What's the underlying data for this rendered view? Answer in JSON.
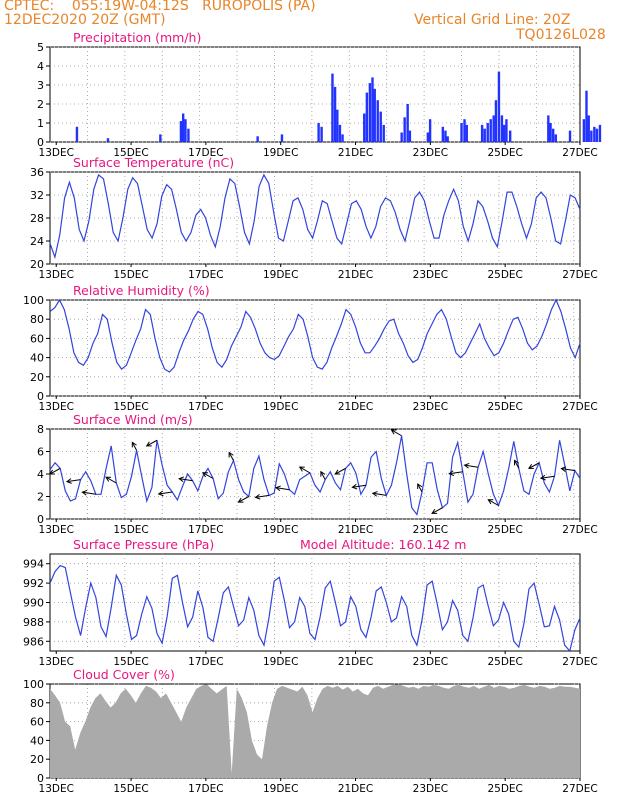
{
  "header": {
    "line1_left": "CPTEC:    055:19W-04:12S   RUROPOLIS (PA)",
    "line2_left": "12DEC2020 20Z (GMT)",
    "line2_right": "Vertical Grid Line: 20Z",
    "line3_right": "TQ0126L028",
    "text_color": "#e8852a"
  },
  "colors": {
    "title": "#e8167f",
    "series": "#3344dd",
    "bars": "#2233ff",
    "cloud": "#aaaaaa",
    "grid": "#999999"
  },
  "x_ticks": [
    "13DEC",
    "15DEC",
    "17DEC",
    "19DEC",
    "21DEC",
    "23DEC",
    "25DEC",
    "27DEC"
  ],
  "chart_data": [
    {
      "type": "bar",
      "title": "Precipitation (mm/h)",
      "xlim": [
        "12DEC2020 20Z",
        "27DEC2020 00Z"
      ],
      "ylim": [
        0,
        5
      ],
      "yticks": [
        0,
        1,
        2,
        3,
        4,
        5
      ],
      "x_day": [
        0.72,
        1.55,
        2.95,
        3.5,
        3.56,
        3.62,
        3.7,
        5.55,
        6.2,
        7.18,
        7.26,
        7.55,
        7.62,
        7.68,
        7.75,
        7.82,
        8.4,
        8.47,
        8.55,
        8.62,
        8.68,
        8.76,
        8.84,
        8.92,
        9.4,
        9.48,
        9.56,
        9.62,
        10.1,
        10.16,
        10.5,
        10.57,
        10.63,
        11.0,
        11.08,
        11.14,
        11.55,
        11.62,
        11.7,
        11.78,
        11.86,
        11.92,
        12.0,
        12.08,
        12.14,
        12.2,
        12.3,
        13.32,
        13.38,
        13.45,
        13.52,
        13.9,
        14.27,
        14.34,
        14.4,
        14.47,
        14.55,
        14.62,
        14.7
      ],
      "values": [
        0.8,
        0.2,
        0.4,
        1.1,
        1.5,
        1.2,
        0.7,
        0.3,
        0.4,
        1.0,
        0.8,
        3.6,
        2.9,
        1.7,
        0.9,
        0.4,
        1.5,
        2.6,
        3.1,
        3.4,
        2.8,
        2.2,
        1.6,
        0.9,
        0.5,
        1.3,
        2.0,
        0.6,
        0.5,
        1.2,
        0.8,
        0.6,
        0.3,
        1.0,
        1.2,
        0.9,
        0.9,
        0.7,
        1.0,
        1.2,
        1.4,
        2.2,
        3.7,
        1.4,
        0.9,
        1.2,
        0.6,
        1.4,
        1.0,
        0.7,
        0.4,
        0.6,
        1.2,
        2.7,
        1.4,
        0.6,
        0.8,
        0.7,
        0.9
      ]
    },
    {
      "type": "line",
      "title": "Surface Temperature (nC)",
      "ylim": [
        20,
        36
      ],
      "yticks": [
        20,
        24,
        28,
        32,
        36
      ],
      "y": [
        23.6,
        21.2,
        25.0,
        31.5,
        34.2,
        31.5,
        26.0,
        24.0,
        27.5,
        33.0,
        35.5,
        34.8,
        30.5,
        25.5,
        24.0,
        28.0,
        33.0,
        35.0,
        34.0,
        30.0,
        26.0,
        24.5,
        27.0,
        31.8,
        33.8,
        33.0,
        29.5,
        25.5,
        24.0,
        25.5,
        28.5,
        29.5,
        28.0,
        25.0,
        23.0,
        26.5,
        31.5,
        34.8,
        34.0,
        30.0,
        25.5,
        23.5,
        27.5,
        33.5,
        35.5,
        34.0,
        29.0,
        24.5,
        24.0,
        27.5,
        31.0,
        31.5,
        29.5,
        26.0,
        24.5,
        27.5,
        31.0,
        30.5,
        27.5,
        24.5,
        23.5,
        27.0,
        30.5,
        31.0,
        29.5,
        26.5,
        24.5,
        26.5,
        30.0,
        31.5,
        31.0,
        29.0,
        26.0,
        24.0,
        27.5,
        31.5,
        32.5,
        31.0,
        27.5,
        24.5,
        24.5,
        28.5,
        31.0,
        33.0,
        31.0,
        26.5,
        24.0,
        27.0,
        31.0,
        30.0,
        27.5,
        24.5,
        23.0,
        27.5,
        32.5,
        32.5,
        30.0,
        27.0,
        24.5,
        27.0,
        31.5,
        32.5,
        31.5,
        28.0,
        24.0,
        23.5,
        27.5,
        32.0,
        31.5,
        29.5
      ]
    },
    {
      "type": "line",
      "title": "Relative Humidity (%)",
      "ylim": [
        0,
        100
      ],
      "yticks": [
        0,
        20,
        40,
        60,
        80,
        100
      ],
      "y": [
        88,
        92,
        100,
        90,
        70,
        45,
        35,
        32,
        40,
        55,
        65,
        85,
        80,
        55,
        35,
        28,
        32,
        45,
        58,
        70,
        90,
        85,
        60,
        40,
        28,
        25,
        30,
        45,
        58,
        68,
        80,
        88,
        85,
        70,
        50,
        35,
        30,
        38,
        52,
        62,
        72,
        88,
        82,
        70,
        55,
        45,
        40,
        38,
        42,
        52,
        62,
        70,
        85,
        80,
        62,
        40,
        30,
        28,
        35,
        50,
        62,
        75,
        90,
        85,
        72,
        55,
        45,
        45,
        52,
        60,
        70,
        78,
        80,
        65,
        55,
        42,
        35,
        38,
        50,
        65,
        75,
        85,
        90,
        80,
        62,
        45,
        40,
        45,
        55,
        65,
        75,
        60,
        50,
        42,
        45,
        55,
        68,
        80,
        82,
        70,
        55,
        48,
        52,
        62,
        75,
        90,
        100,
        88,
        70,
        50,
        40,
        55
      ]
    },
    {
      "type": "line",
      "title": "Surface Wind (m/s)",
      "ylim": [
        0,
        8
      ],
      "yticks": [
        0,
        2,
        4,
        6,
        8
      ],
      "y": [
        4.4,
        5.0,
        4.5,
        2.5,
        1.6,
        1.8,
        3.5,
        4.2,
        3.4,
        2.2,
        2.2,
        4.5,
        6.5,
        3.2,
        1.9,
        2.2,
        3.8,
        6.1,
        3.8,
        1.6,
        2.8,
        7.0,
        4.8,
        3.0,
        2.4,
        1.7,
        2.9,
        4.0,
        3.4,
        2.5,
        3.8,
        4.5,
        3.6,
        1.8,
        2.3,
        4.2,
        5.2,
        3.5,
        2.4,
        2.0,
        4.5,
        5.6,
        3.5,
        2.1,
        2.3,
        4.9,
        4.0,
        2.6,
        2.2,
        3.5,
        3.8,
        4.1,
        3.0,
        2.4,
        3.5,
        4.2,
        3.2,
        2.6,
        4.5,
        5.0,
        4.1,
        2.2,
        3.0,
        5.5,
        6.0,
        3.6,
        2.1,
        3.0,
        5.0,
        7.4,
        4.0,
        1.0,
        0.4,
        2.4,
        5.0,
        5.0,
        2.6,
        1.0,
        1.4,
        5.5,
        6.8,
        4.2,
        1.5,
        2.2,
        4.6,
        6.0,
        4.0,
        2.2,
        1.2,
        2.5,
        4.5,
        6.9,
        4.5,
        2.5,
        2.2,
        4.0,
        5.0,
        3.2,
        2.4,
        3.8,
        7.0,
        4.8,
        2.5,
        4.3,
        3.6
      ],
      "wind_direction_arrows": true
    },
    {
      "type": "line",
      "title": "Surface Pressure (hPa)",
      "annotation": "Model Altitude: 160.142 m",
      "ylim": [
        985,
        995
      ],
      "yticks": [
        986,
        988,
        990,
        992,
        994
      ],
      "y": [
        992.0,
        993.2,
        993.8,
        993.6,
        991.0,
        988.5,
        986.6,
        989.5,
        992.0,
        990.5,
        987.5,
        986.5,
        989.5,
        992.8,
        991.8,
        988.8,
        986.2,
        986.6,
        988.8,
        990.6,
        989.4,
        986.8,
        985.8,
        988.6,
        992.5,
        992.8,
        990.0,
        987.5,
        988.5,
        991.2,
        989.5,
        986.4,
        986.0,
        988.4,
        991.0,
        991.6,
        989.6,
        987.6,
        988.2,
        990.5,
        989.2,
        986.6,
        985.6,
        988.5,
        992.2,
        992.6,
        990.2,
        987.4,
        988.0,
        990.5,
        989.6,
        986.8,
        986.2,
        988.5,
        991.5,
        992.2,
        990.0,
        987.6,
        988.0,
        990.6,
        989.6,
        987.2,
        986.4,
        988.5,
        991.2,
        991.6,
        990.0,
        988.0,
        988.4,
        990.6,
        989.6,
        986.6,
        985.6,
        988.2,
        991.8,
        992.2,
        989.8,
        987.2,
        988.0,
        990.2,
        989.2,
        986.6,
        986.0,
        988.4,
        991.5,
        991.8,
        989.6,
        987.6,
        988.2,
        990.0,
        988.8,
        986.0,
        985.4,
        987.8,
        991.4,
        992.0,
        989.8,
        987.5,
        987.6,
        989.6,
        988.2,
        985.6,
        985.0,
        987.2,
        988.4
      ]
    },
    {
      "type": "area",
      "title": "Cloud Cover (%)",
      "ylim": [
        0,
        100
      ],
      "yticks": [
        0,
        20,
        40,
        60,
        80,
        100
      ],
      "y": [
        95,
        88,
        80,
        60,
        55,
        30,
        48,
        60,
        75,
        85,
        90,
        82,
        75,
        80,
        90,
        95,
        88,
        80,
        90,
        98,
        96,
        92,
        85,
        90,
        80,
        70,
        60,
        75,
        85,
        95,
        98,
        100,
        95,
        90,
        94,
        98,
        5,
        95,
        85,
        70,
        40,
        25,
        20,
        55,
        80,
        95,
        98,
        96,
        94,
        92,
        97,
        88,
        70,
        85,
        95,
        98,
        96,
        98,
        94,
        97,
        92,
        95,
        90,
        88,
        96,
        98,
        95,
        97,
        99,
        100,
        98,
        96,
        97,
        95,
        98,
        97,
        99,
        98,
        96,
        95,
        98,
        99,
        97,
        96,
        98,
        95,
        97,
        99,
        96,
        98,
        97,
        95,
        96,
        98,
        99,
        97,
        96,
        98,
        97,
        95,
        96,
        98,
        97,
        97,
        96,
        95
      ]
    }
  ]
}
